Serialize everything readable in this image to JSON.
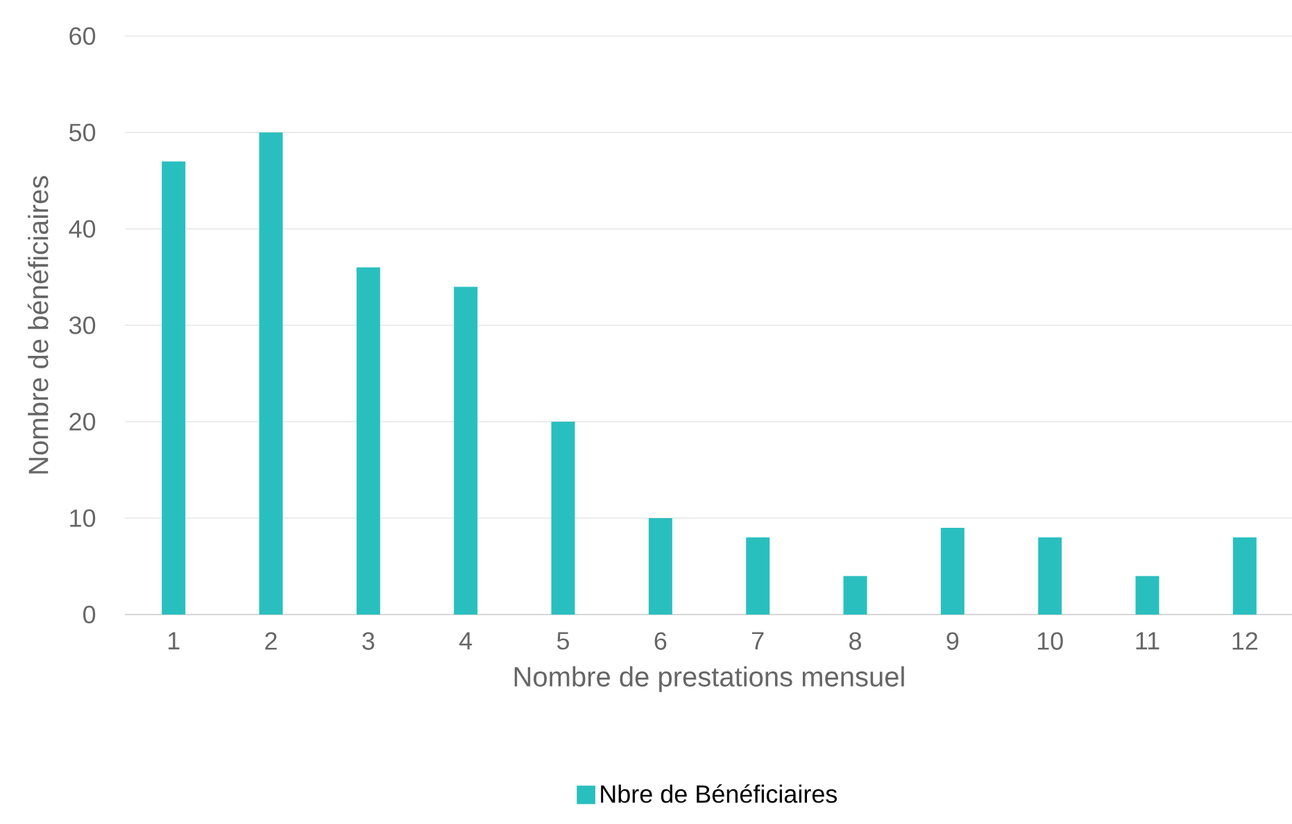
{
  "chart_data": {
    "type": "bar",
    "xlabel": "Nombre de prestations mensuel",
    "ylabel": "Nombre de bénéficiaires",
    "categories": [
      "1",
      "2",
      "3",
      "4",
      "5",
      "6",
      "7",
      "8",
      "9",
      "10",
      "11",
      "12"
    ],
    "series": [
      {
        "name": "Nbre de Bénéficiaires",
        "color": "#2abfbf",
        "values": [
          47,
          50,
          36,
          34,
          20,
          10,
          8,
          4,
          9,
          8,
          4,
          8
        ]
      }
    ],
    "ylim": [
      0,
      60
    ],
    "yticks": [
      0,
      10,
      20,
      30,
      40,
      50,
      60
    ],
    "grid": "y",
    "legend": "bottom"
  }
}
